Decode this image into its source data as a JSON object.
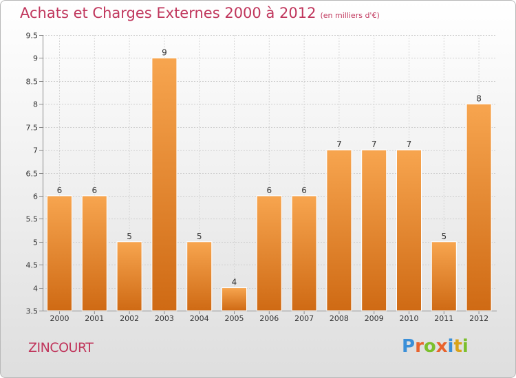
{
  "header": {
    "title": "Achats et Charges Externes 2000 à 2012",
    "unit": "(en milliers d'€)"
  },
  "footer": {
    "city": "ZINCOURT"
  },
  "logo": {
    "letters": [
      "P",
      "r",
      "o",
      "x",
      "i",
      "t",
      "i"
    ],
    "colors": [
      "#3a8fd8",
      "#e8632d",
      "#7bbf2c",
      "#e8632d",
      "#3a8fd8",
      "#d9a31a",
      "#7bbf2c"
    ]
  },
  "chart_data": {
    "type": "bar",
    "title": "Achats et Charges Externes 2000 à 2012",
    "subtitle": "(en milliers d'€)",
    "xlabel": "",
    "ylabel": "",
    "categories": [
      "2000",
      "2001",
      "2002",
      "2003",
      "2004",
      "2005",
      "2006",
      "2007",
      "2008",
      "2009",
      "2010",
      "2011",
      "2012"
    ],
    "values": [
      6,
      6,
      5,
      9,
      5,
      4,
      6,
      6,
      7,
      7,
      7,
      5,
      8
    ],
    "data_labels": [
      "6",
      "6",
      "5",
      "9",
      "5",
      "4",
      "6",
      "6",
      "7",
      "7",
      "7",
      "5",
      "8"
    ],
    "ylim": [
      3.5,
      9.5
    ],
    "yticks": [
      3.5,
      4,
      4.5,
      5,
      5.5,
      6,
      6.5,
      7,
      7.5,
      8,
      8.5,
      9,
      9.5
    ],
    "ytick_labels": [
      "3.5",
      "4",
      "4.5",
      "5",
      "5.5",
      "6",
      "6.5",
      "7",
      "7.5",
      "8",
      "8.5",
      "9",
      "9.5"
    ],
    "grid": true,
    "bar_color_top": "#f7a54f",
    "bar_color_bottom": "#cf6a14",
    "text_color": "#333333"
  }
}
